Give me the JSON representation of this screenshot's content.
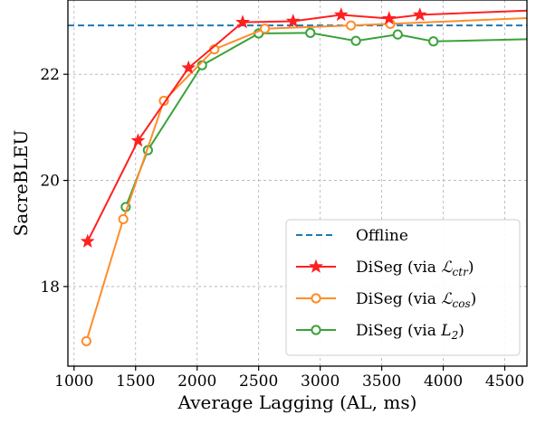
{
  "chart_data": {
    "type": "line",
    "xlabel": "Average Lagging (AL, ms)",
    "ylabel": "SacreBLEU",
    "xlim": [
      950,
      4680
    ],
    "ylim": [
      16.5,
      23.4
    ],
    "xticks": [
      1000,
      1500,
      2000,
      2500,
      3000,
      3500,
      4000,
      4500
    ],
    "yticks": [
      18,
      20,
      22
    ],
    "grid": true,
    "legend_position": "bottom-right",
    "offline": {
      "name": "Offline",
      "value": 22.92,
      "color": "#1f77b4",
      "style": "dashed"
    },
    "series": [
      {
        "name": "DiSeg (via ℒ_ctr)",
        "legend_base": "DiSeg (via ",
        "legend_math": "ℒ",
        "legend_sub": "ctr",
        "legend_tail": ")",
        "color": "#ff2020",
        "marker": "star",
        "x": [
          1110,
          1520,
          1930,
          2370,
          2780,
          3170,
          3560,
          3810,
          4680
        ],
        "y": [
          18.85,
          20.75,
          22.12,
          22.98,
          23.0,
          23.12,
          23.05,
          23.12,
          23.2
        ]
      },
      {
        "name": "DiSeg (via ℒ_cos)",
        "legend_base": "DiSeg (via ",
        "legend_math": "ℒ",
        "legend_sub": "cos",
        "legend_tail": ")",
        "color": "#ff8c29",
        "marker": "circle",
        "x": [
          1100,
          1400,
          1730,
          2140,
          2550,
          3250,
          3570,
          4680
        ],
        "y": [
          16.97,
          19.27,
          21.5,
          22.47,
          22.86,
          22.92,
          22.95,
          23.06
        ]
      },
      {
        "name": "DiSeg (via L_2)",
        "legend_base": "DiSeg (via ",
        "legend_math": "L",
        "legend_sub": "2",
        "legend_tail": ")",
        "color": "#3aa23a",
        "marker": "circle",
        "x": [
          1420,
          1600,
          2040,
          2500,
          2920,
          3290,
          3630,
          3920,
          4680
        ],
        "y": [
          19.5,
          20.57,
          22.17,
          22.77,
          22.78,
          22.63,
          22.75,
          22.62,
          22.66
        ]
      }
    ]
  }
}
